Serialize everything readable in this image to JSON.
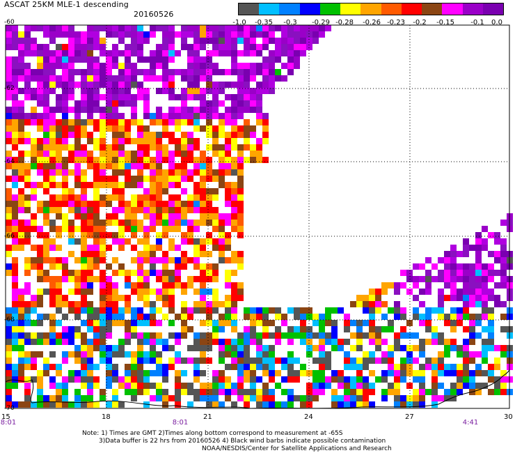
{
  "header": {
    "title": "ASCAT 25KM MLE-1 descending",
    "date": "20160526"
  },
  "colorbar": {
    "segments": [
      "#555555",
      "#00bfff",
      "#0080ff",
      "#0000ff",
      "#00c000",
      "#ffff00",
      "#ffa500",
      "#ff5a00",
      "#ff0000",
      "#8b4513",
      "#ff00ff",
      "#9a00c8",
      "#7a00b0"
    ],
    "labels": [
      "-1.0",
      "-0.35",
      "-0.3",
      "-0.29",
      "-0.28",
      "-0.26",
      "-0.23",
      "-0.2",
      "-0.15",
      "-0.1",
      "0.0"
    ]
  },
  "axes": {
    "lat_labels": [
      "-60",
      "-62",
      "-64",
      "-66",
      "-68",
      "-70"
    ],
    "lon_labels": [
      "15",
      "18",
      "21",
      "24",
      "27",
      "30"
    ],
    "time_labels": [
      "8:01",
      "8:01",
      "4:41"
    ]
  },
  "notes": {
    "line1": "Note: 1) Times are GMT 2)Times along bottom correspond to measurement at -65S",
    "line2": "3)Data buffer is 22 hrs from 20160526 4) Black wind barbs indicate possible contamination",
    "line3": "NOAA/NESDIS/Center for Satellite Applications and Research"
  }
}
